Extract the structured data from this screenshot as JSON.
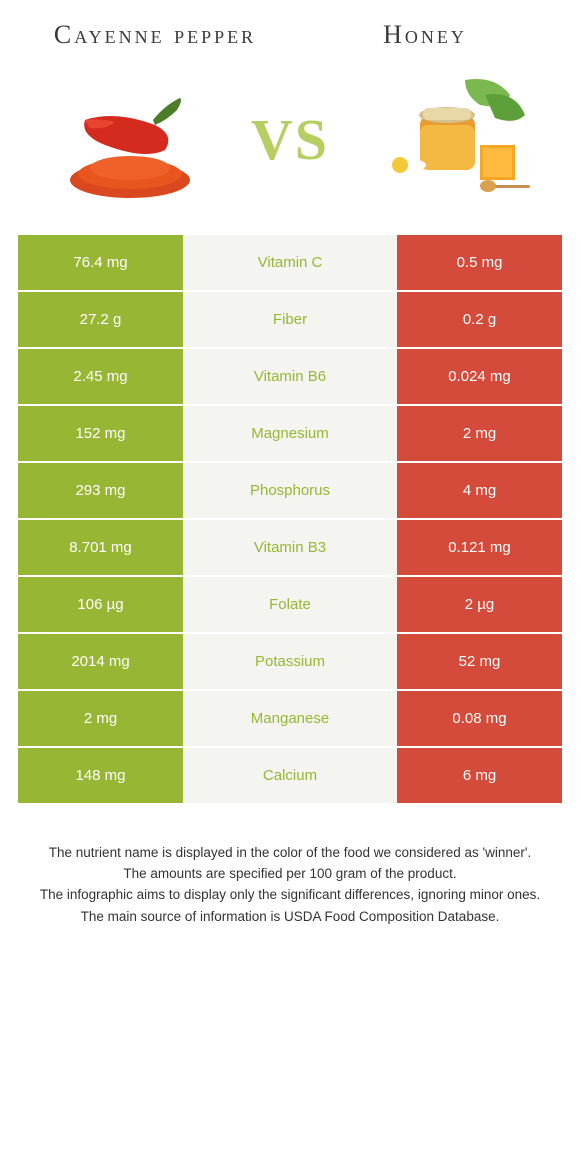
{
  "header": {
    "left_title": "Cayenne pepper",
    "right_title": "Honey",
    "vs_text": "VS"
  },
  "colors": {
    "left_bg": "#97b734",
    "right_bg": "#d44b3b",
    "mid_bg": "#f4f4f0",
    "nutrient_left_wins": "#97b734",
    "nutrient_right_wins": "#d44b3b",
    "vs_color": "#b7ce63"
  },
  "rows": [
    {
      "left": "76.4 mg",
      "nutrient": "Vitamin C",
      "right": "0.5 mg",
      "winner": "left"
    },
    {
      "left": "27.2 g",
      "nutrient": "Fiber",
      "right": "0.2 g",
      "winner": "left"
    },
    {
      "left": "2.45 mg",
      "nutrient": "Vitamin B6",
      "right": "0.024 mg",
      "winner": "left"
    },
    {
      "left": "152 mg",
      "nutrient": "Magnesium",
      "right": "2 mg",
      "winner": "left"
    },
    {
      "left": "293 mg",
      "nutrient": "Phosphorus",
      "right": "4 mg",
      "winner": "left"
    },
    {
      "left": "8.701 mg",
      "nutrient": "Vitamin B3",
      "right": "0.121 mg",
      "winner": "left"
    },
    {
      "left": "106 µg",
      "nutrient": "Folate",
      "right": "2 µg",
      "winner": "left"
    },
    {
      "left": "2014 mg",
      "nutrient": "Potassium",
      "right": "52 mg",
      "winner": "left"
    },
    {
      "left": "2 mg",
      "nutrient": "Manganese",
      "right": "0.08 mg",
      "winner": "left"
    },
    {
      "left": "148 mg",
      "nutrient": "Calcium",
      "right": "6 mg",
      "winner": "left"
    }
  ],
  "footer": {
    "line1": "The nutrient name is displayed in the color of the food we considered as 'winner'.",
    "line2": "The amounts are specified per 100 gram of the product.",
    "line3": "The infographic aims to display only the significant differences, ignoring minor ones.",
    "line4": "The main source of information is USDA Food Composition Database."
  }
}
